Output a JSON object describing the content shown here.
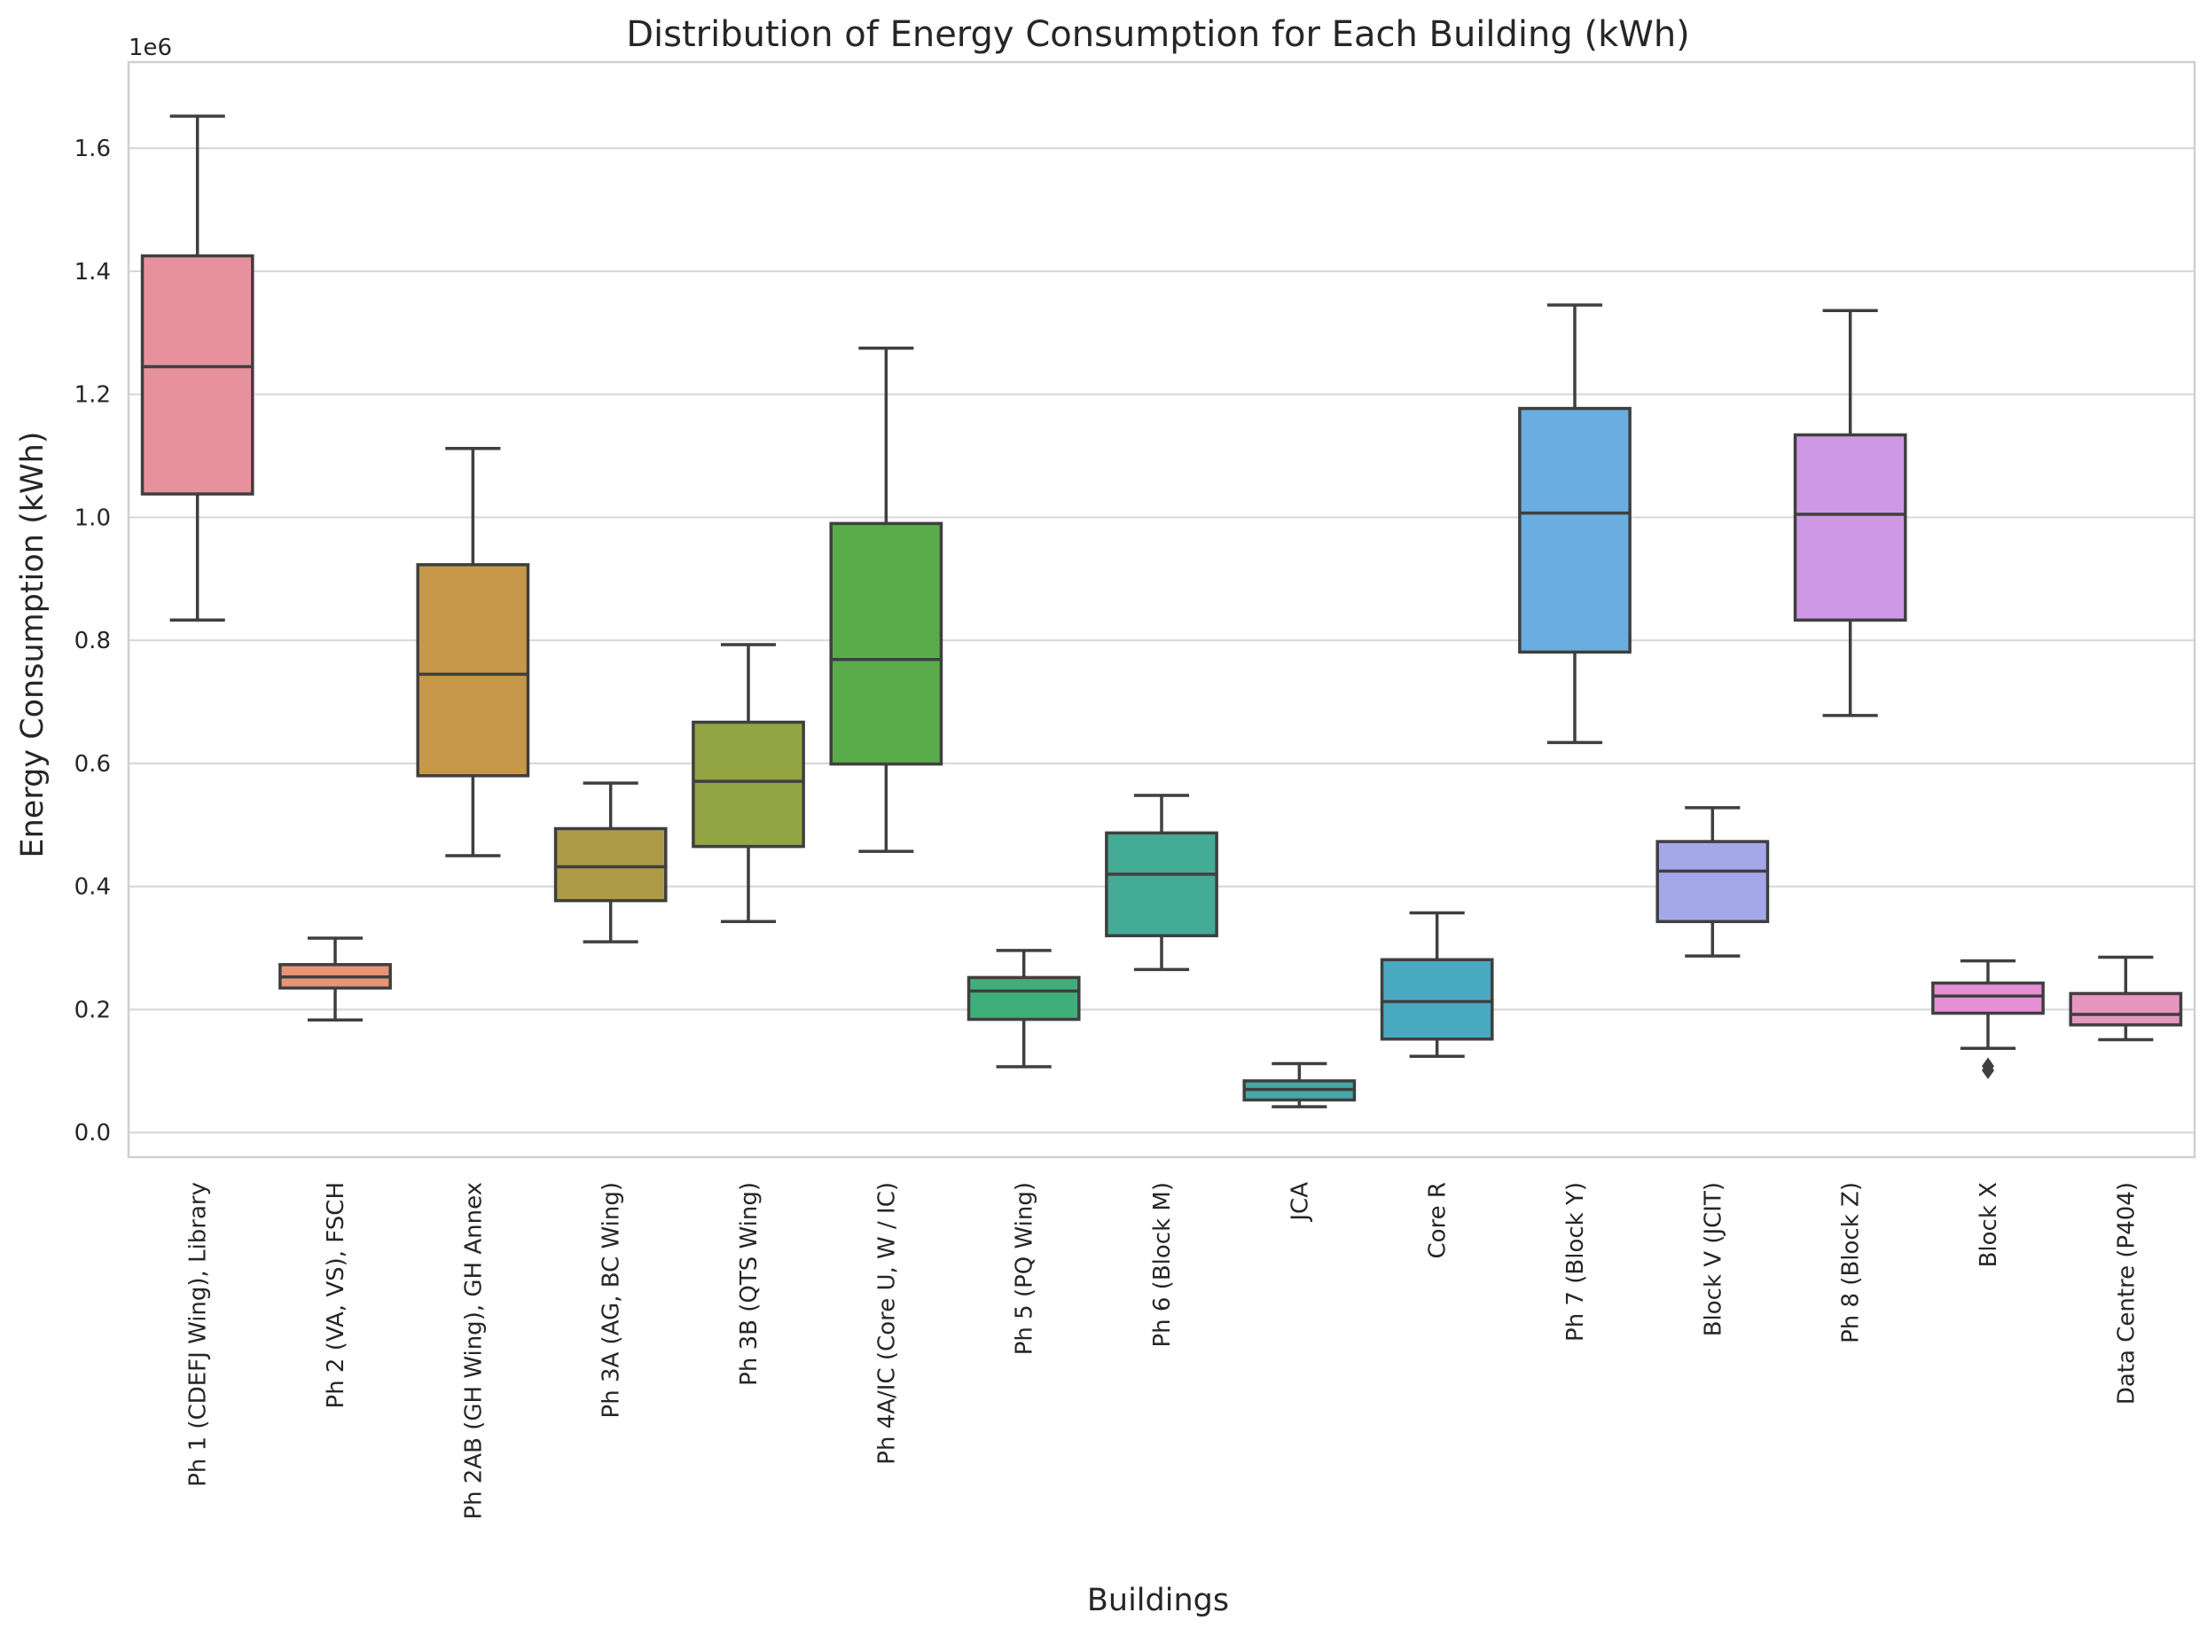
{
  "chart_data": {
    "type": "box",
    "title": "Distribution of Energy Consumption for Each Building (kWh)",
    "xlabel": "Buildings",
    "ylabel": "Energy Consumption (kWh)",
    "y_exponent_label": "1e6",
    "ylim": [
      -0.04,
      1.74
    ],
    "y_scale_factor": 1000000,
    "yticks": [
      0.0,
      0.2,
      0.4,
      0.6,
      0.8,
      1.0,
      1.2,
      1.4,
      1.6
    ],
    "ytick_labels": [
      "0.0",
      "0.2",
      "0.4",
      "0.6",
      "0.8",
      "1.0",
      "1.2",
      "1.4",
      "1.6"
    ],
    "grid": "horizontal",
    "legend": "none",
    "categories": [
      "Ph 1 (CDEFJ Wing), Library",
      "Ph 2 (VA, VS), FSCH",
      "Ph 2AB (GH Wing), GH Annex",
      "Ph 3A (AG, BC Wing)",
      "Ph 3B (QTS Wing)",
      "Ph 4A/IC (Core U, W / IC)",
      "Ph 5 (PQ Wing)",
      "Ph 6 (Block M)",
      "JCA",
      "Core R",
      "Ph 7 (Block Y)",
      "Block V (JCIT)",
      "Ph 8 (Block Z)",
      "Block X",
      "Data Centre (P404)"
    ],
    "boxes": [
      {
        "whislo": 0.833,
        "q1": 1.038,
        "med": 1.245,
        "q3": 1.425,
        "whishi": 1.652,
        "fliers": []
      },
      {
        "whislo": 0.183,
        "q1": 0.235,
        "med": 0.253,
        "q3": 0.273,
        "whishi": 0.316,
        "fliers": []
      },
      {
        "whislo": 0.45,
        "q1": 0.58,
        "med": 0.745,
        "q3": 0.923,
        "whishi": 1.112,
        "fliers": []
      },
      {
        "whislo": 0.31,
        "q1": 0.377,
        "med": 0.432,
        "q3": 0.494,
        "whishi": 0.568,
        "fliers": []
      },
      {
        "whislo": 0.343,
        "q1": 0.465,
        "med": 0.571,
        "q3": 0.667,
        "whishi": 0.793,
        "fliers": []
      },
      {
        "whislo": 0.457,
        "q1": 0.599,
        "med": 0.769,
        "q3": 0.99,
        "whishi": 1.275,
        "fliers": []
      },
      {
        "whislo": 0.107,
        "q1": 0.184,
        "med": 0.23,
        "q3": 0.252,
        "whishi": 0.296,
        "fliers": []
      },
      {
        "whislo": 0.265,
        "q1": 0.32,
        "med": 0.42,
        "q3": 0.487,
        "whishi": 0.548,
        "fliers": []
      },
      {
        "whislo": 0.042,
        "q1": 0.053,
        "med": 0.07,
        "q3": 0.084,
        "whishi": 0.112,
        "fliers": []
      },
      {
        "whislo": 0.124,
        "q1": 0.152,
        "med": 0.213,
        "q3": 0.281,
        "whishi": 0.357,
        "fliers": []
      },
      {
        "whislo": 0.634,
        "q1": 0.781,
        "med": 1.007,
        "q3": 1.177,
        "whishi": 1.345,
        "fliers": []
      },
      {
        "whislo": 0.287,
        "q1": 0.343,
        "med": 0.425,
        "q3": 0.473,
        "whishi": 0.528,
        "fliers": []
      },
      {
        "whislo": 0.678,
        "q1": 0.833,
        "med": 1.005,
        "q3": 1.134,
        "whishi": 1.336,
        "fliers": []
      },
      {
        "whislo": 0.137,
        "q1": 0.194,
        "med": 0.222,
        "q3": 0.243,
        "whishi": 0.279,
        "fliers": [
          0.108,
          0.101
        ]
      },
      {
        "whislo": 0.151,
        "q1": 0.175,
        "med": 0.192,
        "q3": 0.226,
        "whishi": 0.285,
        "fliers": []
      }
    ],
    "colors": [
      "#e8919e",
      "#e79575",
      "#c7984a",
      "#ad9b48",
      "#93a444",
      "#5aac4a",
      "#3fae7a",
      "#44ab97",
      "#46a8a8",
      "#48a9c0",
      "#6aaee1",
      "#a4a8ea",
      "#cf98e5",
      "#e58fd5",
      "#e796bf"
    ],
    "line_color": "#3f3f3f",
    "grid_color": "#d9d9d9"
  }
}
